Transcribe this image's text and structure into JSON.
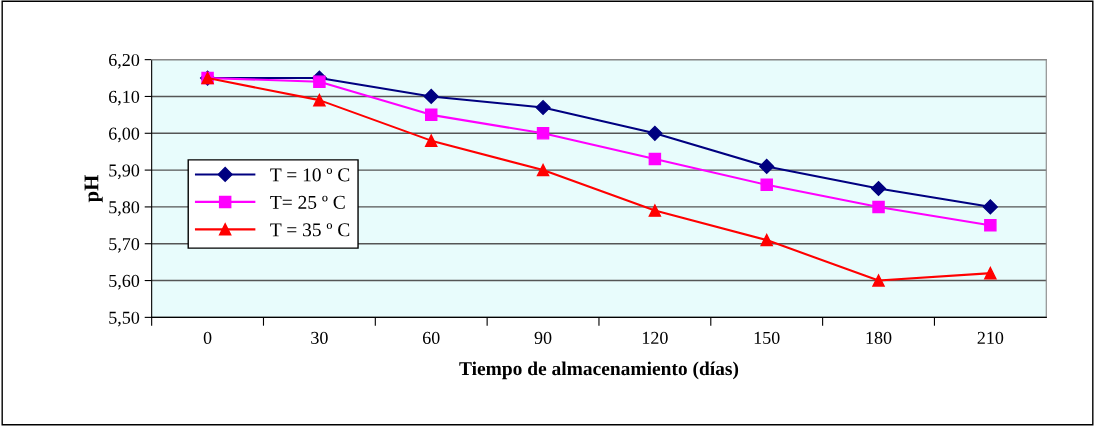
{
  "chart_data": {
    "type": "line",
    "xlabel": "Tiempo de almacenamiento (días)",
    "ylabel": "pH",
    "categories": [
      "0",
      "30",
      "60",
      "90",
      "120",
      "150",
      "180",
      "210"
    ],
    "series": [
      {
        "name": "T = 10 º C",
        "color": "#000080",
        "marker": "diamond",
        "values": [
          6.15,
          6.15,
          6.1,
          6.07,
          6.0,
          5.91,
          5.85,
          5.8
        ]
      },
      {
        "name": "T= 25 º C",
        "color": "#ff00ff",
        "marker": "square",
        "values": [
          6.15,
          6.14,
          6.05,
          6.0,
          5.93,
          5.86,
          5.8,
          5.75
        ]
      },
      {
        "name": "T = 35 º C",
        "color": "#ff0000",
        "marker": "triangle",
        "values": [
          6.15,
          6.09,
          5.98,
          5.9,
          5.79,
          5.71,
          5.6,
          5.62
        ]
      }
    ],
    "ylim": [
      5.5,
      6.2
    ],
    "yticks": [
      {
        "value": 5.5,
        "label": "5,50"
      },
      {
        "value": 5.6,
        "label": "5,60"
      },
      {
        "value": 5.7,
        "label": "5,70"
      },
      {
        "value": 5.8,
        "label": "5,80"
      },
      {
        "value": 5.9,
        "label": "5,90"
      },
      {
        "value": 6.0,
        "label": "6,00"
      },
      {
        "value": 6.1,
        "label": "6,10"
      },
      {
        "value": 6.2,
        "label": "6,20"
      }
    ],
    "grid": "y",
    "legend": "left",
    "line_style": "solid"
  }
}
